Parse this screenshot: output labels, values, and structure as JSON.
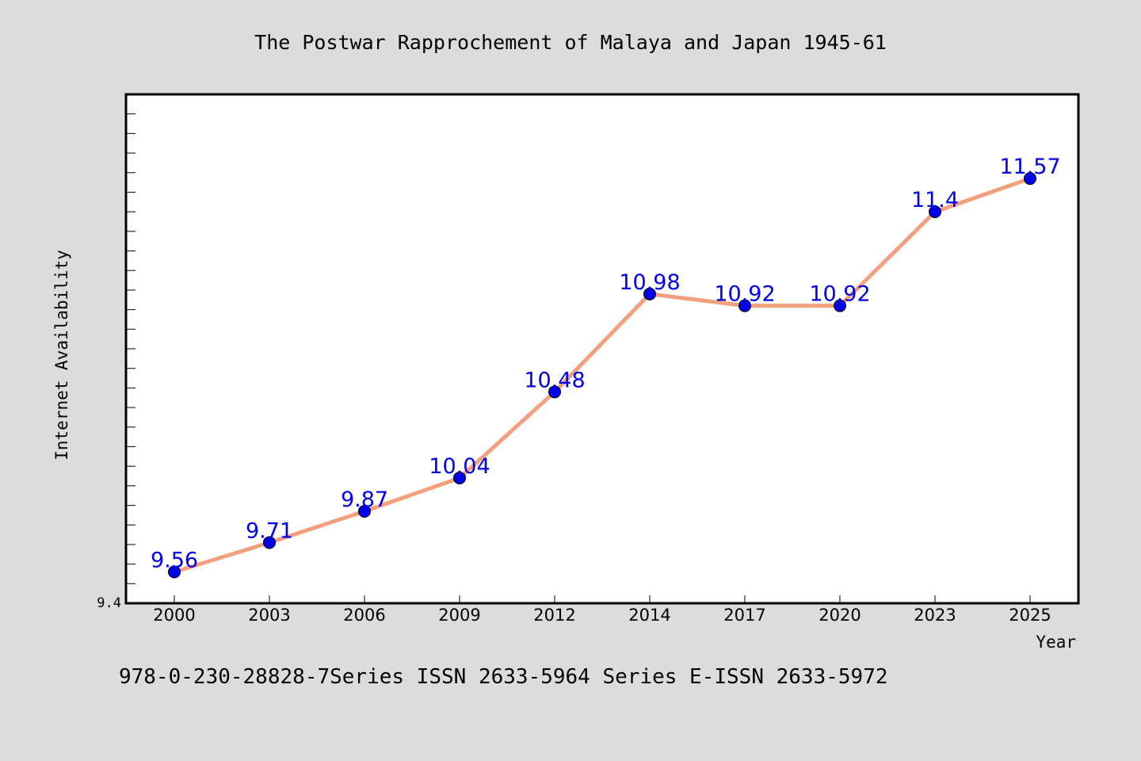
{
  "chart_data": {
    "type": "line",
    "title": "The Postwar Rapprochement of Malaya and Japan 1945-61",
    "xlabel": "Year",
    "ylabel": "Internet Availability",
    "categories": [
      "2000",
      "2003",
      "2006",
      "2009",
      "2012",
      "2014",
      "2017",
      "2020",
      "2023",
      "2025"
    ],
    "series": [
      {
        "values": [
          9.56,
          9.71,
          9.87,
          10.04,
          10.48,
          10.98,
          10.92,
          10.92,
          11.4,
          11.57
        ],
        "data_labels": [
          "9.56",
          "9.71",
          "9.87",
          "10.04",
          "10.48",
          "10.98",
          "10.92",
          "10.92",
          "11.4",
          "11.57"
        ],
        "line_color": "#f4a07f",
        "marker_color": "#0000ee",
        "label_color": "#0000ee"
      }
    ],
    "ylim": [
      9.4,
      12.0
    ],
    "y_tick_labels": [
      "9.4"
    ],
    "grid": false,
    "legend": "none"
  },
  "footer": {
    "text": "978-0-230-28828-7Series ISSN 2633-5964 Series E-ISSN 2633-5972"
  },
  "colors": {
    "background": "#dcdcdc",
    "plot_background": "#ffffff",
    "axis": "#000000"
  }
}
